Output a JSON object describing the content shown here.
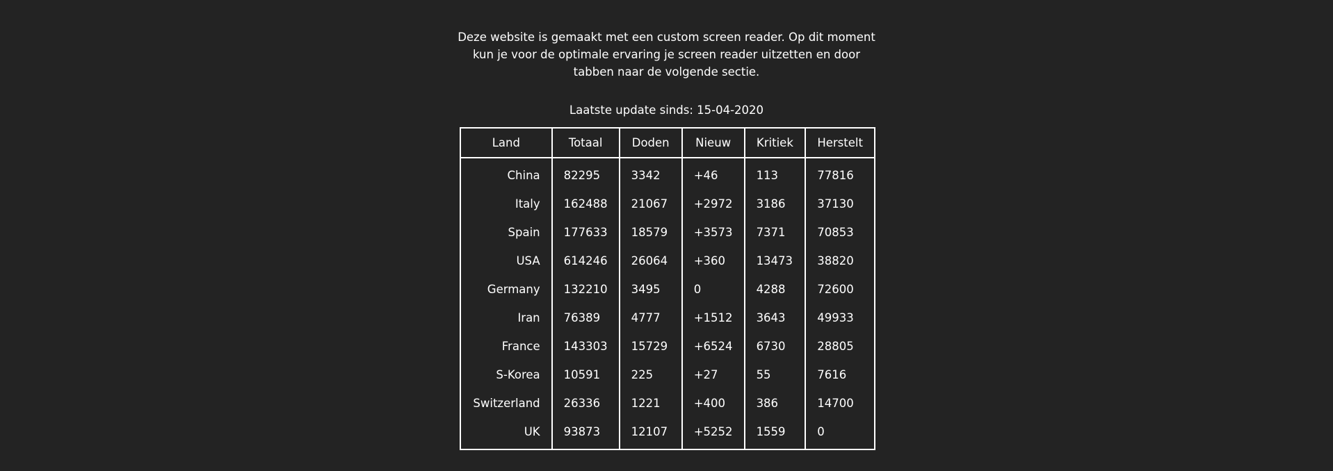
{
  "intro": {
    "text": "Deze website is gemaakt met een custom screen reader. Op dit moment kun je voor de optimale ervaring je screen reader uitzetten en door tabben naar de volgende sectie."
  },
  "update": {
    "text": "Laatste update sinds: 15-04-2020"
  },
  "table": {
    "headers": [
      "Land",
      "Totaal",
      "Doden",
      "Nieuw",
      "Kritiek",
      "Herstelt"
    ],
    "rows": [
      [
        "China",
        "82295",
        "3342",
        "+46",
        "113",
        "77816"
      ],
      [
        "Italy",
        "162488",
        "21067",
        "+2972",
        "3186",
        "37130"
      ],
      [
        "Spain",
        "177633",
        "18579",
        "+3573",
        "7371",
        "70853"
      ],
      [
        "USA",
        "614246",
        "26064",
        "+360",
        "13473",
        "38820"
      ],
      [
        "Germany",
        "132210",
        "3495",
        "0",
        "4288",
        "72600"
      ],
      [
        "Iran",
        "76389",
        "4777",
        "+1512",
        "3643",
        "49933"
      ],
      [
        "France",
        "143303",
        "15729",
        "+6524",
        "6730",
        "28805"
      ],
      [
        "S-Korea",
        "10591",
        "225",
        "+27",
        "55",
        "7616"
      ],
      [
        "Switzerland",
        "26336",
        "1221",
        "+400",
        "386",
        "14700"
      ],
      [
        "UK",
        "93873",
        "12107",
        "+5252",
        "1559",
        "0"
      ]
    ]
  },
  "colors": {
    "background": "#232323",
    "text": "#ffffff",
    "border": "#ffffff"
  }
}
